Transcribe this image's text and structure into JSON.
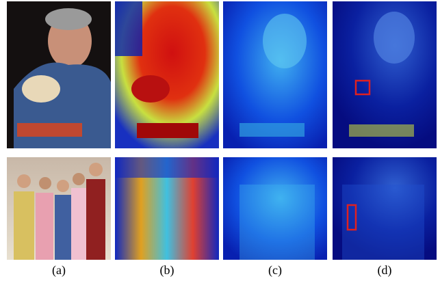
{
  "figure": {
    "captions": [
      "(a)",
      "(b)",
      "(c)",
      "(d)"
    ]
  }
}
